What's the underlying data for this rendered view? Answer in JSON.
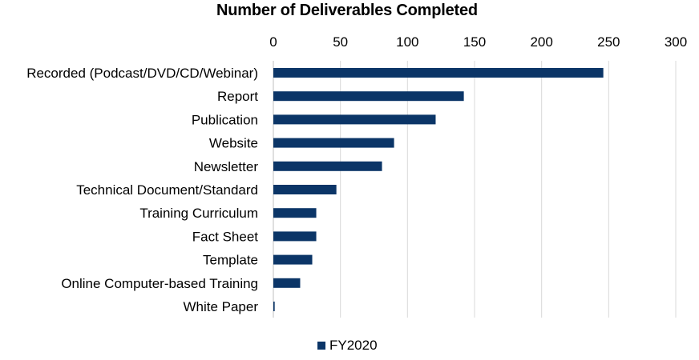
{
  "chart_data": {
    "type": "bar",
    "orientation": "horizontal",
    "title": "Number of Deliverables Completed",
    "xlabel": "",
    "ylabel": "",
    "xlim": [
      0,
      300
    ],
    "x_ticks": [
      0,
      50,
      100,
      150,
      200,
      250,
      300
    ],
    "x_axis_position": "top",
    "grid": true,
    "legend_position": "bottom",
    "categories": [
      "Recorded (Podcast/DVD/CD/Webinar)",
      "Report",
      "Publication",
      "Website",
      "Newsletter",
      "Technical Document/Standard",
      "Training Curriculum",
      "Fact Sheet",
      "Template",
      "Online Computer-based Training",
      "White Paper"
    ],
    "series": [
      {
        "name": "FY2020",
        "color": "#0b3567",
        "values": [
          246,
          142,
          121,
          90,
          81,
          47,
          32,
          32,
          29,
          20,
          1
        ]
      }
    ]
  }
}
